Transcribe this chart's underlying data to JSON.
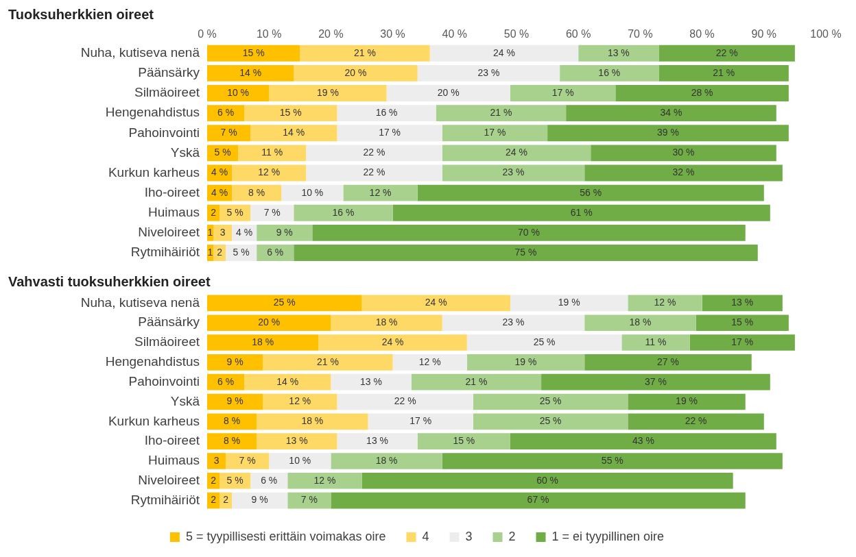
{
  "chart_data": [
    {
      "type": "bar",
      "title": "Tuoksuherkkien oireet",
      "orientation": "horizontal",
      "stacked": true,
      "grid": false,
      "legend": false,
      "categories": [
        "Nuha, kutiseva nenä",
        "Päänsärky",
        "Silmäoireet",
        "Hengenahdistus",
        "Pahoinvointi",
        "Yskä",
        "Kurkun karheus",
        "Iho-oireet",
        "Huimaus",
        "Niveloireet",
        "Rytmihäiriöt"
      ],
      "xlim": [
        0,
        100
      ],
      "xticks": [
        {
          "value": 0,
          "label": "0 %"
        },
        {
          "value": 10,
          "label": "10 %"
        },
        {
          "value": 20,
          "label": "20 %"
        },
        {
          "value": 30,
          "label": "30 %"
        },
        {
          "value": 40,
          "label": "40 %"
        },
        {
          "value": 50,
          "label": "50 %"
        },
        {
          "value": 60,
          "label": "60 %"
        },
        {
          "value": 70,
          "label": "70 %"
        },
        {
          "value": 80,
          "label": "80 %"
        },
        {
          "value": 90,
          "label": "90 %"
        },
        {
          "value": 100,
          "label": "100 %"
        }
      ],
      "series": [
        {
          "color": "#ffc000",
          "values": [
            15,
            14,
            10,
            6,
            7,
            5,
            4,
            4,
            2,
            1,
            1
          ],
          "value_labels": [
            "15 %",
            "14 %",
            "10 %",
            "6 %",
            "7 %",
            "5 %",
            "4 %",
            "4 %",
            "2",
            "1",
            "1"
          ]
        },
        {
          "color": "#ffd966",
          "values": [
            21,
            20,
            19,
            15,
            14,
            11,
            12,
            8,
            5,
            3,
            2
          ],
          "value_labels": [
            "21 %",
            "20 %",
            "19 %",
            "15 %",
            "14 %",
            "11 %",
            "12 %",
            "8 %",
            "5 %",
            "3",
            "2"
          ]
        },
        {
          "color": "#ededed",
          "values": [
            24,
            23,
            20,
            16,
            17,
            22,
            22,
            10,
            7,
            4,
            5
          ],
          "value_labels": [
            "24 %",
            "23 %",
            "20 %",
            "16 %",
            "17 %",
            "22 %",
            "22 %",
            "10 %",
            "7 %",
            "4 %",
            "5 %"
          ]
        },
        {
          "color": "#a9d18e",
          "values": [
            13,
            16,
            17,
            21,
            17,
            24,
            23,
            12,
            16,
            9,
            6
          ],
          "value_labels": [
            "13 %",
            "16 %",
            "17 %",
            "21 %",
            "17 %",
            "24 %",
            "23 %",
            "12 %",
            "16 %",
            "9 %",
            "6 %"
          ]
        },
        {
          "color": "#70ad47",
          "values": [
            22,
            21,
            28,
            34,
            39,
            30,
            32,
            56,
            61,
            70,
            75
          ],
          "value_labels": [
            "22 %",
            "21 %",
            "28 %",
            "34 %",
            "39 %",
            "30 %",
            "32 %",
            "56 %",
            "61 %",
            "70 %",
            "75 %"
          ]
        }
      ]
    },
    {
      "type": "bar",
      "title": "Vahvasti tuoksuherkkien oireet",
      "orientation": "horizontal",
      "stacked": true,
      "grid": false,
      "legend": "bottom",
      "tick_labels": "y",
      "categories": [
        "Nuha, kutiseva nenä",
        "Päänsärky",
        "Silmäoireet",
        "Hengenahdistus",
        "Pahoinvointi",
        "Yskä",
        "Kurkun karheus",
        "Iho-oireet",
        "Huimaus",
        "Niveloireet",
        "Rytmihäiriöt"
      ],
      "xlim": [
        0,
        100
      ],
      "series": [
        {
          "name": "5 = tyypillisesti erittäin voimakas oire",
          "color": "#ffc000",
          "values": [
            25,
            20,
            18,
            9,
            6,
            9,
            8,
            8,
            3,
            2,
            2
          ],
          "value_labels": [
            "25 %",
            "20 %",
            "18 %",
            "9 %",
            "6 %",
            "9 %",
            "8 %",
            "8 %",
            "3",
            "2",
            "2"
          ]
        },
        {
          "name": "4",
          "color": "#ffd966",
          "values": [
            24,
            18,
            24,
            21,
            14,
            12,
            18,
            13,
            7,
            5,
            2
          ],
          "value_labels": [
            "24 %",
            "18 %",
            "24 %",
            "21 %",
            "14 %",
            "12 %",
            "18 %",
            "13 %",
            "7 %",
            "5 %",
            "2"
          ]
        },
        {
          "name": "3",
          "color": "#ededed",
          "values": [
            19,
            23,
            25,
            12,
            13,
            22,
            17,
            13,
            10,
            6,
            9
          ],
          "value_labels": [
            "19 %",
            "23 %",
            "25 %",
            "12 %",
            "13 %",
            "22 %",
            "17 %",
            "13 %",
            "10 %",
            "6 %",
            "9 %"
          ]
        },
        {
          "name": "2",
          "color": "#a9d18e",
          "values": [
            12,
            18,
            11,
            19,
            21,
            25,
            25,
            15,
            18,
            12,
            7
          ],
          "value_labels": [
            "12 %",
            "18 %",
            "11 %",
            "19 %",
            "21 %",
            "25 %",
            "25 %",
            "15 %",
            "18 %",
            "12 %",
            "7 %"
          ]
        },
        {
          "name": "1 = ei tyypillinen oire",
          "color": "#70ad47",
          "values": [
            13,
            15,
            17,
            27,
            37,
            19,
            22,
            43,
            55,
            60,
            67
          ],
          "value_labels": [
            "13 %",
            "15 %",
            "17 %",
            "27 %",
            "37 %",
            "19 %",
            "22 %",
            "43 %",
            "55 %",
            "60 %",
            "67 %"
          ]
        }
      ]
    }
  ]
}
